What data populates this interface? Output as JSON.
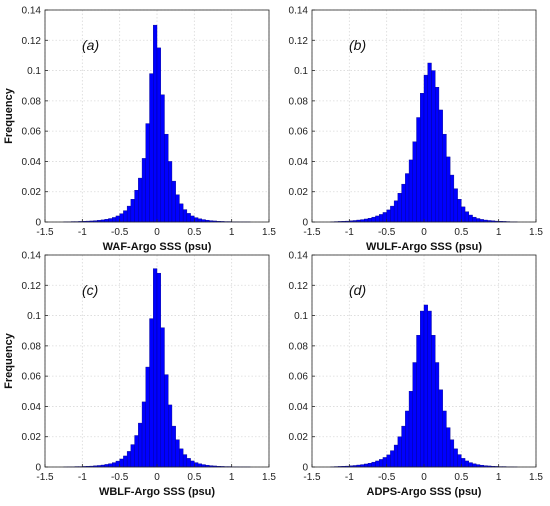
{
  "chart_data": [
    {
      "type": "bar",
      "panel_label": "(a)",
      "xlabel": "WAF-Argo SSS (psu)",
      "ylabel": "Frequency",
      "xlim": [
        -1.5,
        1.5
      ],
      "ylim": [
        0,
        0.14
      ],
      "xticks": [
        "-1.5",
        "-1",
        "-0.5",
        "0",
        "0.5",
        "1",
        "1.5"
      ],
      "yticks": [
        "0",
        "0.02",
        "0.04",
        "0.06",
        "0.08",
        "0.1",
        "0.12",
        "0.14"
      ],
      "grid": true,
      "bar_color": "#0000ff",
      "bin_width": 0.05,
      "bin_centers": [
        -1.225,
        -1.175,
        -1.125,
        -1.075,
        -1.025,
        -0.975,
        -0.925,
        -0.875,
        -0.825,
        -0.775,
        -0.725,
        -0.675,
        -0.625,
        -0.575,
        -0.525,
        -0.475,
        -0.425,
        -0.375,
        -0.325,
        -0.275,
        -0.225,
        -0.175,
        -0.125,
        -0.075,
        -0.025,
        0.025,
        0.075,
        0.125,
        0.175,
        0.225,
        0.275,
        0.325,
        0.375,
        0.425,
        0.475,
        0.525,
        0.575,
        0.625,
        0.675,
        0.725,
        0.775,
        0.825,
        0.875,
        0.925,
        0.975,
        1.025,
        1.075,
        1.125,
        1.175,
        1.225
      ],
      "values": [
        0.0002,
        0.0002,
        0.0003,
        0.0003,
        0.0004,
        0.0005,
        0.0006,
        0.0007,
        0.0009,
        0.0011,
        0.0014,
        0.0018,
        0.0023,
        0.003,
        0.004,
        0.0055,
        0.0075,
        0.0105,
        0.015,
        0.021,
        0.029,
        0.042,
        0.065,
        0.098,
        0.13,
        0.115,
        0.084,
        0.058,
        0.04,
        0.027,
        0.018,
        0.012,
        0.0082,
        0.0057,
        0.004,
        0.0029,
        0.0021,
        0.0016,
        0.0012,
        0.0009,
        0.0007,
        0.0005,
        0.0004,
        0.0003,
        0.0003,
        0.0002,
        0.0002,
        0.0001,
        0.0001,
        0.0001
      ]
    },
    {
      "type": "bar",
      "panel_label": "(b)",
      "xlabel": "WULF-Argo SSS (psu)",
      "ylabel": "",
      "xlim": [
        -1.5,
        1.5
      ],
      "ylim": [
        0,
        0.14
      ],
      "xticks": [
        "-1.5",
        "-1",
        "-0.5",
        "0",
        "0.5",
        "1",
        "1.5"
      ],
      "yticks": [
        "0",
        "0.02",
        "0.04",
        "0.06",
        "0.08",
        "0.1",
        "0.12",
        "0.14"
      ],
      "grid": true,
      "bar_color": "#0000ff",
      "bin_width": 0.05,
      "bin_centers": [
        -1.225,
        -1.175,
        -1.125,
        -1.075,
        -1.025,
        -0.975,
        -0.925,
        -0.875,
        -0.825,
        -0.775,
        -0.725,
        -0.675,
        -0.625,
        -0.575,
        -0.525,
        -0.475,
        -0.425,
        -0.375,
        -0.325,
        -0.275,
        -0.225,
        -0.175,
        -0.125,
        -0.075,
        -0.025,
        0.025,
        0.075,
        0.125,
        0.175,
        0.225,
        0.275,
        0.325,
        0.375,
        0.425,
        0.475,
        0.525,
        0.575,
        0.625,
        0.675,
        0.725,
        0.775,
        0.825,
        0.875,
        0.925,
        0.975,
        1.025,
        1.075,
        1.125,
        1.175,
        1.225
      ],
      "values": [
        0.0002,
        0.0003,
        0.0004,
        0.0005,
        0.0006,
        0.0008,
        0.001,
        0.0013,
        0.0016,
        0.002,
        0.0025,
        0.0032,
        0.004,
        0.005,
        0.0063,
        0.008,
        0.0105,
        0.014,
        0.019,
        0.025,
        0.032,
        0.041,
        0.053,
        0.069,
        0.085,
        0.097,
        0.105,
        0.1,
        0.089,
        0.074,
        0.058,
        0.043,
        0.031,
        0.022,
        0.015,
        0.01,
        0.0068,
        0.0046,
        0.0032,
        0.0023,
        0.0017,
        0.0013,
        0.001,
        0.0008,
        0.0006,
        0.0005,
        0.0004,
        0.0003,
        0.0002,
        0.0002
      ]
    },
    {
      "type": "bar",
      "panel_label": "(c)",
      "xlabel": "WBLF-Argo SSS (psu)",
      "ylabel": "Frequency",
      "xlim": [
        -1.5,
        1.5
      ],
      "ylim": [
        0,
        0.14
      ],
      "xticks": [
        "-1.5",
        "-1",
        "-0.5",
        "0",
        "0.5",
        "1",
        "1.5"
      ],
      "yticks": [
        "0",
        "0.02",
        "0.04",
        "0.06",
        "0.08",
        "0.1",
        "0.12",
        "0.14"
      ],
      "grid": true,
      "bar_color": "#0000ff",
      "bin_width": 0.05,
      "bin_centers": [
        -1.225,
        -1.175,
        -1.125,
        -1.075,
        -1.025,
        -0.975,
        -0.925,
        -0.875,
        -0.825,
        -0.775,
        -0.725,
        -0.675,
        -0.625,
        -0.575,
        -0.525,
        -0.475,
        -0.425,
        -0.375,
        -0.325,
        -0.275,
        -0.225,
        -0.175,
        -0.125,
        -0.075,
        -0.025,
        0.025,
        0.075,
        0.125,
        0.175,
        0.225,
        0.275,
        0.325,
        0.375,
        0.425,
        0.475,
        0.525,
        0.575,
        0.625,
        0.675,
        0.725,
        0.775,
        0.825,
        0.875,
        0.925,
        0.975,
        1.025,
        1.075,
        1.125,
        1.175,
        1.225
      ],
      "values": [
        0.0001,
        0.0002,
        0.0002,
        0.0003,
        0.0003,
        0.0004,
        0.0005,
        0.0006,
        0.0008,
        0.001,
        0.0013,
        0.0017,
        0.0022,
        0.0029,
        0.0039,
        0.0053,
        0.0073,
        0.0103,
        0.0148,
        0.0208,
        0.029,
        0.043,
        0.066,
        0.098,
        0.131,
        0.128,
        0.092,
        0.061,
        0.041,
        0.027,
        0.018,
        0.012,
        0.0082,
        0.0057,
        0.004,
        0.0029,
        0.0021,
        0.0016,
        0.0012,
        0.0009,
        0.0007,
        0.0005,
        0.0004,
        0.0003,
        0.0003,
        0.0002,
        0.0002,
        0.0001,
        0.0001,
        0.0001
      ]
    },
    {
      "type": "bar",
      "panel_label": "(d)",
      "xlabel": "ADPS-Argo SSS (psu)",
      "ylabel": "",
      "xlim": [
        -1.5,
        1.5
      ],
      "ylim": [
        0,
        0.14
      ],
      "xticks": [
        "-1.5",
        "-1",
        "-0.5",
        "0",
        "0.5",
        "1",
        "1.5"
      ],
      "yticks": [
        "0",
        "0.02",
        "0.04",
        "0.06",
        "0.08",
        "0.1",
        "0.12",
        "0.14"
      ],
      "grid": true,
      "bar_color": "#0000ff",
      "bin_width": 0.05,
      "bin_centers": [
        -1.225,
        -1.175,
        -1.125,
        -1.075,
        -1.025,
        -0.975,
        -0.925,
        -0.875,
        -0.825,
        -0.775,
        -0.725,
        -0.675,
        -0.625,
        -0.575,
        -0.525,
        -0.475,
        -0.425,
        -0.375,
        -0.325,
        -0.275,
        -0.225,
        -0.175,
        -0.125,
        -0.075,
        -0.025,
        0.025,
        0.075,
        0.125,
        0.175,
        0.225,
        0.275,
        0.325,
        0.375,
        0.425,
        0.475,
        0.525,
        0.575,
        0.625,
        0.675,
        0.725,
        0.775,
        0.825,
        0.875,
        0.925,
        0.975,
        1.025,
        1.075,
        1.125,
        1.175,
        1.225
      ],
      "values": [
        0.0002,
        0.0003,
        0.0004,
        0.0005,
        0.0006,
        0.0008,
        0.001,
        0.0013,
        0.0016,
        0.002,
        0.0025,
        0.0032,
        0.004,
        0.005,
        0.0063,
        0.008,
        0.0108,
        0.0145,
        0.02,
        0.027,
        0.037,
        0.05,
        0.069,
        0.087,
        0.103,
        0.107,
        0.103,
        0.087,
        0.069,
        0.051,
        0.037,
        0.026,
        0.018,
        0.012,
        0.0082,
        0.0057,
        0.004,
        0.0029,
        0.0021,
        0.0016,
        0.0012,
        0.0009,
        0.0007,
        0.0005,
        0.0004,
        0.0003,
        0.0003,
        0.0002,
        0.0002,
        0.0001
      ]
    }
  ]
}
